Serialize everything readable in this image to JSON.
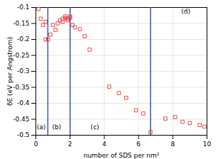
{
  "chart_data": {
    "type": "scatter",
    "x": [
      0.15,
      0.28,
      0.42,
      0.57,
      0.57,
      0.72,
      0.85,
      1.0,
      1.15,
      1.28,
      1.42,
      1.57,
      1.57,
      1.72,
      1.72,
      1.85,
      1.85,
      2.0,
      2.0,
      2.14,
      2.28,
      2.57,
      2.85,
      3.14,
      4.28,
      4.85,
      5.28,
      5.85,
      6.28,
      6.7,
      7.57,
      8.14,
      8.57,
      9.0,
      9.57,
      9.85
    ],
    "values": [
      -0.105,
      -0.135,
      -0.155,
      -0.145,
      -0.2,
      -0.2,
      -0.185,
      -0.155,
      -0.17,
      -0.15,
      -0.14,
      -0.135,
      -0.145,
      -0.128,
      -0.133,
      -0.135,
      -0.14,
      -0.128,
      -0.132,
      -0.155,
      -0.162,
      -0.168,
      -0.19,
      -0.232,
      -0.348,
      -0.368,
      -0.383,
      -0.422,
      -0.432,
      -0.49,
      -0.448,
      -0.443,
      -0.458,
      -0.462,
      -0.468,
      -0.473
    ],
    "color": "#EE3333",
    "marker": "square",
    "vlines": {
      "values": [
        0.7,
        2.0,
        6.7
      ],
      "color": "#3355BB"
    },
    "xlabel": "number of SDS per nm²",
    "ylabel": "δE (eV per Angstrom)",
    "xlim": [
      0,
      10
    ],
    "ylim": [
      -0.5,
      -0.1
    ],
    "xticks": [
      0,
      2,
      4,
      6,
      8,
      10
    ],
    "yticks": [
      -0.1,
      -0.15,
      -0.2,
      -0.25,
      -0.3,
      -0.35,
      -0.4,
      -0.45,
      -0.5
    ],
    "annotations": [
      {
        "text": "(a)",
        "x": 0.05,
        "y": -0.482
      },
      {
        "text": "(b)",
        "x": 0.95,
        "y": -0.482
      },
      {
        "text": "(c)",
        "x": 3.2,
        "y": -0.482
      },
      {
        "text": "(d)",
        "x": 8.5,
        "y": -0.118
      }
    ],
    "grid": true
  }
}
